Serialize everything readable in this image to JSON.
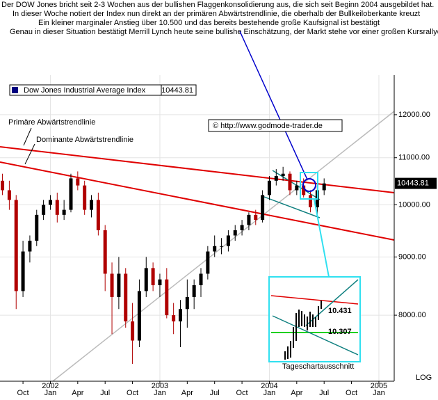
{
  "header": {
    "lines": [
      "Der DOW Jones bricht seit 2-3 Wochen aus der bullishen Flaggenkonsolidierung aus, die sich seit Beginn 2004 ausgebildet hat.",
      "In dieser Woche notiert der Index nun direkt an der primären Abwärtstrendlinie, die  oberhalb der Bullkeiloberkante kreuzt",
      "Ein kleiner marginaler Anstieg über 10.500 und das bereits bestehende große Kaufsignal ist bestätigt",
      "Genau in dieser Situation bestätigt Merrill Lynch heute seine bullishe Einschätzung, der Markt stehe vor einer großen Kursrallye"
    ]
  },
  "chart_data": {
    "type": "candlestick",
    "index_name": "Dow Jones Industrial Average Index",
    "last_value": 10443.81,
    "copyright": "© http://www.godmode-trader.de",
    "annotations": [
      "Primäre Abwärtstrendlinie",
      "Dominante  Abwärtstrendlinie"
    ],
    "inset": {
      "caption": "Tageschartausschnitt",
      "labels": [
        "10.431",
        "10.307"
      ]
    },
    "scale_label": "LOG",
    "log_scale": true,
    "grid": true,
    "up_color": "#000000",
    "down_color": "#b00000",
    "x": [
      2001.5625,
      2001.625,
      2001.6875,
      2001.75,
      2001.8125,
      2001.875,
      2001.9375,
      2002,
      2002.0625,
      2002.125,
      2002.1875,
      2002.25,
      2002.3125,
      2002.375,
      2002.4375,
      2002.5,
      2002.5625,
      2002.625,
      2002.6875,
      2002.75,
      2002.8125,
      2002.875,
      2002.9375,
      2003,
      2003.0625,
      2003.125,
      2003.1875,
      2003.25,
      2003.3125,
      2003.375,
      2003.4375,
      2003.5,
      2003.5625,
      2003.625,
      2003.6875,
      2003.75,
      2003.8125,
      2003.875,
      2003.9375,
      2004,
      2004.0625,
      2004.125,
      2004.1875,
      2004.25,
      2004.3125,
      2004.375,
      2004.4375,
      2004.5
    ],
    "open": [
      10500,
      10300,
      10100,
      8400,
      9100,
      9300,
      9800,
      10000,
      10100,
      9800,
      9900,
      10550,
      10400,
      9900,
      10100,
      9500,
      8700,
      8300,
      8700,
      7900,
      7600,
      8400,
      8800,
      8500,
      8600,
      8000,
      7900,
      8100,
      8300,
      8500,
      8700,
      9100,
      9200,
      9200,
      9400,
      9500,
      9600,
      9800,
      9700,
      10200,
      10500,
      10600,
      10650,
      10300,
      10400,
      10200,
      9950,
      10300
    ],
    "high": [
      10650,
      10500,
      10200,
      9300,
      9400,
      9900,
      10100,
      10200,
      10250,
      10100,
      10650,
      10700,
      10500,
      10200,
      10250,
      9600,
      8900,
      9000,
      8800,
      8200,
      8600,
      9000,
      8900,
      8700,
      8800,
      8200,
      8250,
      8600,
      8600,
      8800,
      9200,
      9400,
      9350,
      9500,
      9600,
      9700,
      9850,
      9900,
      10300,
      10600,
      10750,
      10800,
      10700,
      10500,
      10550,
      10300,
      10400,
      10550
    ],
    "low": [
      10200,
      9900,
      8100,
      8300,
      8900,
      9200,
      9700,
      9900,
      9650,
      9700,
      9850,
      10300,
      9800,
      9750,
      9400,
      8400,
      7700,
      8100,
      7800,
      7250,
      7500,
      8300,
      8400,
      8300,
      7950,
      7700,
      7500,
      7800,
      8100,
      8300,
      8600,
      9000,
      9050,
      9100,
      9300,
      9400,
      9500,
      9600,
      9650,
      10100,
      10400,
      10500,
      10200,
      10200,
      10150,
      9850,
      9800,
      10200
    ],
    "close": [
      10300,
      10100,
      8400,
      9100,
      9300,
      9800,
      10000,
      10100,
      9800,
      9900,
      10550,
      10400,
      9900,
      10100,
      9500,
      8700,
      8300,
      8700,
      7900,
      7600,
      8400,
      8800,
      8500,
      8600,
      8000,
      7900,
      8100,
      8300,
      8500,
      8700,
      9100,
      9200,
      9200,
      9400,
      9500,
      9600,
      9800,
      9700,
      10200,
      10500,
      10600,
      10650,
      10300,
      10400,
      10200,
      9950,
      10300,
      10443
    ],
    "xlim": [
      2001.54,
      2005.14
    ],
    "xticks": [
      {
        "value": 2001.75,
        "label": "Oct"
      },
      {
        "value": 2002,
        "label": "Jan"
      },
      {
        "value": 2002.25,
        "label": "Apr"
      },
      {
        "value": 2002.5,
        "label": "Jul"
      },
      {
        "value": 2002.75,
        "label": "Oct"
      },
      {
        "value": 2003,
        "label": "Jan"
      },
      {
        "value": 2003.25,
        "label": "Apr"
      },
      {
        "value": 2003.5,
        "label": "Jul"
      },
      {
        "value": 2003.75,
        "label": "Oct"
      },
      {
        "value": 2004,
        "label": "Jan"
      },
      {
        "value": 2004.25,
        "label": "Apr"
      },
      {
        "value": 2004.5,
        "label": "Jul"
      },
      {
        "value": 2004.75,
        "label": "Oct"
      },
      {
        "value": 2005,
        "label": "Jan"
      }
    ],
    "years": [
      2002,
      2003,
      2004,
      2005
    ],
    "ylim": [
      7000,
      13000
    ],
    "yticks": [
      {
        "value": 8000,
        "label": "8000.00"
      },
      {
        "value": 9000,
        "label": "9000.00"
      },
      {
        "value": 10000,
        "label": "10000.00"
      },
      {
        "value": 11000,
        "label": "11000.00"
      },
      {
        "value": 12000,
        "label": "12000.00"
      }
    ]
  }
}
